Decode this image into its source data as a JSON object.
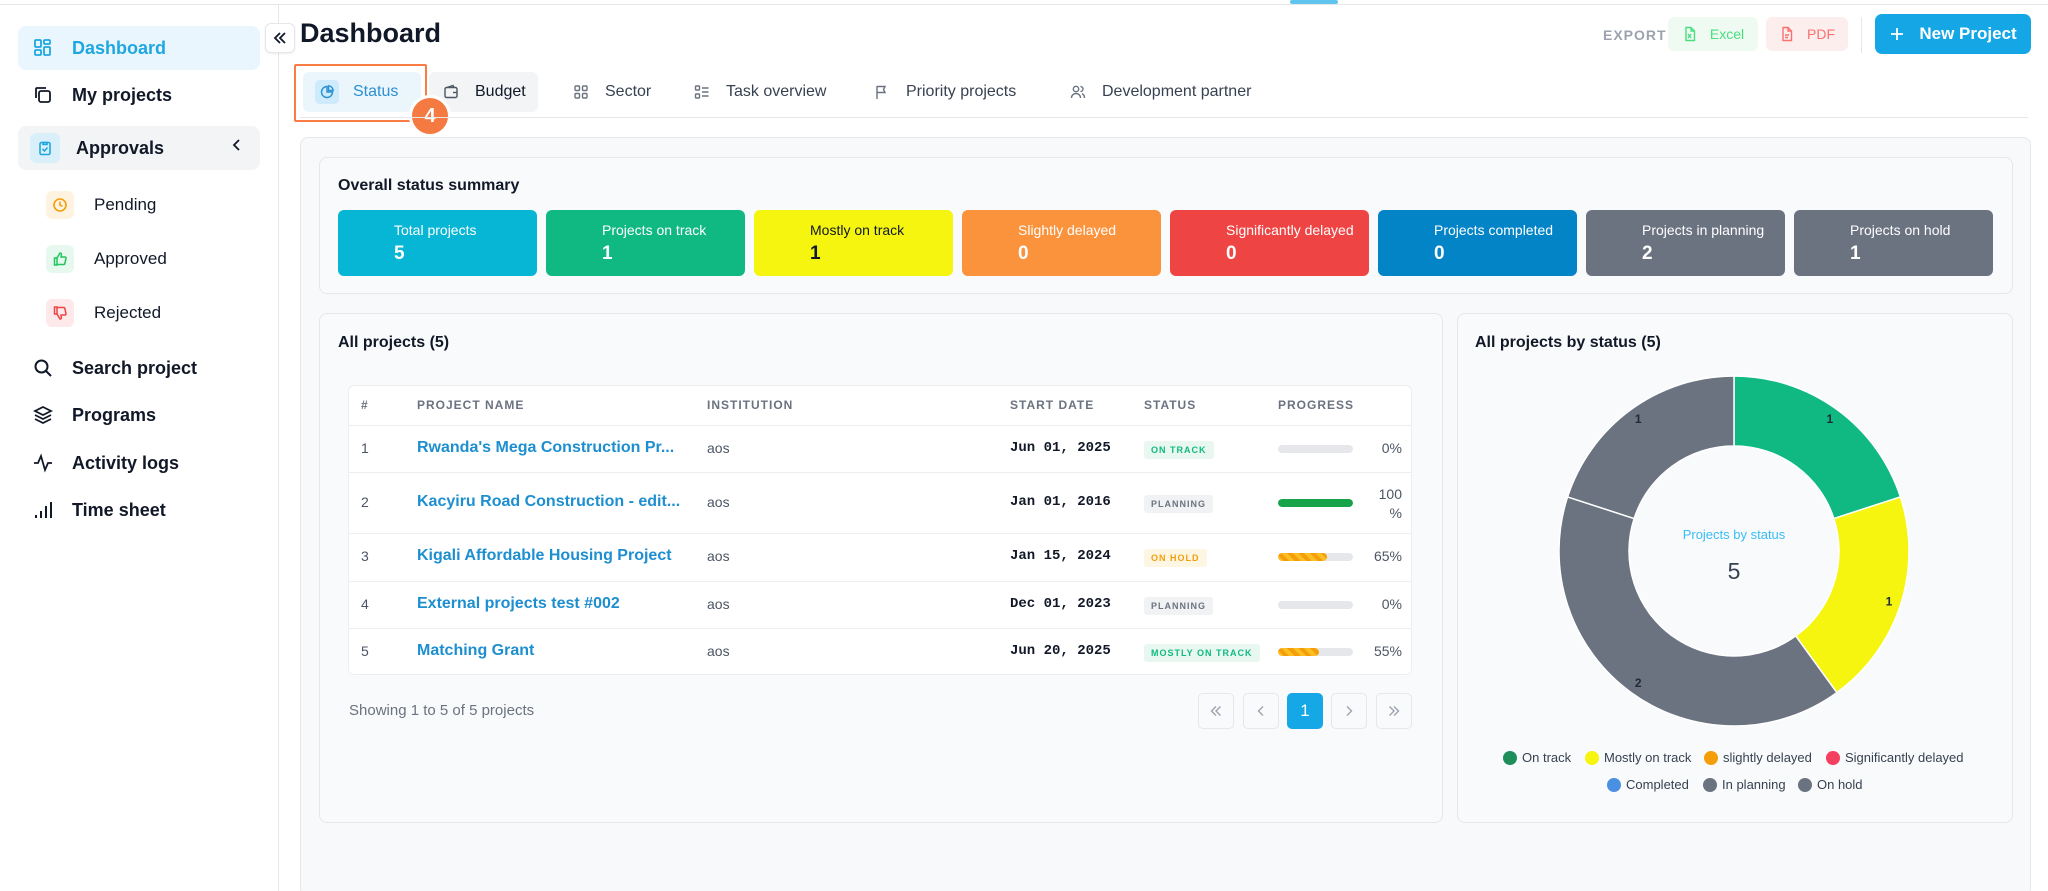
{
  "sidebar": {
    "items": [
      {
        "label": "Dashboard"
      },
      {
        "label": "My projects"
      },
      {
        "label": "Approvals"
      },
      {
        "label": "Pending"
      },
      {
        "label": "Approved"
      },
      {
        "label": "Rejected"
      },
      {
        "label": "Search project"
      },
      {
        "label": "Programs"
      },
      {
        "label": "Activity logs"
      },
      {
        "label": "Time sheet"
      }
    ]
  },
  "header": {
    "title": "Dashboard",
    "export_label": "EXPORT",
    "excel_label": "Excel",
    "pdf_label": "PDF",
    "new_project_label": "New Project"
  },
  "tabs": [
    {
      "label": "Status"
    },
    {
      "label": "Budget"
    },
    {
      "label": "Sector"
    },
    {
      "label": "Task overview"
    },
    {
      "label": "Priority projects"
    },
    {
      "label": "Development partner"
    }
  ],
  "step_badge": "4",
  "summary": {
    "title": "Overall status summary",
    "stats": [
      {
        "label": "Total projects",
        "value": "5",
        "color": "#06b6d4"
      },
      {
        "label": "Projects on track",
        "value": "1",
        "color": "#10b981"
      },
      {
        "label": "Mostly on track",
        "value": "1",
        "color": "#f5f50f"
      },
      {
        "label": "Slightly delayed",
        "value": "0",
        "color": "#fb923c"
      },
      {
        "label": "Significantly delayed",
        "value": "0",
        "color": "#ef4444"
      },
      {
        "label": "Projects completed",
        "value": "0",
        "color": "#0284c7"
      },
      {
        "label": "Projects in planning",
        "value": "2",
        "color": "#6b7280"
      },
      {
        "label": "Projects on hold",
        "value": "1",
        "color": "#6b7280"
      }
    ]
  },
  "projects": {
    "title": "All projects (5)",
    "columns": [
      "#",
      "PROJECT NAME",
      "INSTITUTION",
      "START DATE",
      "STATUS",
      "PROGRESS"
    ],
    "rows": [
      {
        "num": "1",
        "name": "Rwanda's Mega Construction Pr...",
        "institution": "aos",
        "start": "Jun 01, 2025",
        "status": "ON TRACK",
        "status_fg": "#10b981",
        "status_bg": "#e8f8f1",
        "progress": 0,
        "pct": "0%"
      },
      {
        "num": "2",
        "name": "Kacyiru Road Construction - edit...",
        "institution": "aos",
        "start": "Jan 01, 2016",
        "status": "PLANNING",
        "status_fg": "#6b7280",
        "status_bg": "#f1f2f4",
        "progress": 100,
        "pct": "100 %"
      },
      {
        "num": "3",
        "name": "Kigali Affordable Housing Project",
        "institution": "aos",
        "start": "Jan 15, 2024",
        "status": "ON HOLD",
        "status_fg": "#f59e0b",
        "status_bg": "#fdf6e3",
        "progress": 65,
        "pct": "65%"
      },
      {
        "num": "4",
        "name": "External projects test #002",
        "institution": "aos",
        "start": "Dec 01, 2023",
        "status": "PLANNING",
        "status_fg": "#6b7280",
        "status_bg": "#f1f2f4",
        "progress": 0,
        "pct": "0%"
      },
      {
        "num": "5",
        "name": "Matching Grant",
        "institution": "aos",
        "start": "Jun 20, 2025",
        "status": "MOSTLY ON TRACK",
        "status_fg": "#10b981",
        "status_bg": "#e8f8f1",
        "progress": 55,
        "pct": "55%"
      }
    ],
    "showing": "Showing 1 to 5 of 5 projects",
    "page": "1"
  },
  "chart_data": {
    "type": "pie",
    "title": "All projects by status (5)",
    "center_label": "Projects by status",
    "center_value": "5",
    "slices": [
      {
        "name": "On track",
        "value": 1,
        "color": "#10b981",
        "label": "1"
      },
      {
        "name": "Mostly on track",
        "value": 1,
        "color": "#f5f50f",
        "label": "1"
      },
      {
        "name": "In planning",
        "value": 2,
        "color": "#6b7280",
        "label": "2"
      },
      {
        "name": "On hold",
        "value": 1,
        "color": "#6b7280",
        "label": "1"
      }
    ],
    "legend": [
      {
        "name": "On track",
        "color": "#1e8e5a"
      },
      {
        "name": "Mostly on track",
        "color": "#f5f50f"
      },
      {
        "name": "slightly delayed",
        "color": "#f59e0b"
      },
      {
        "name": "Significantly delayed",
        "color": "#f43f5e"
      },
      {
        "name": "Completed",
        "color": "#4a90e2"
      },
      {
        "name": "In planning",
        "color": "#6b7280"
      },
      {
        "name": "On hold",
        "color": "#6b7280"
      }
    ],
    "legend_position": "bottom"
  }
}
